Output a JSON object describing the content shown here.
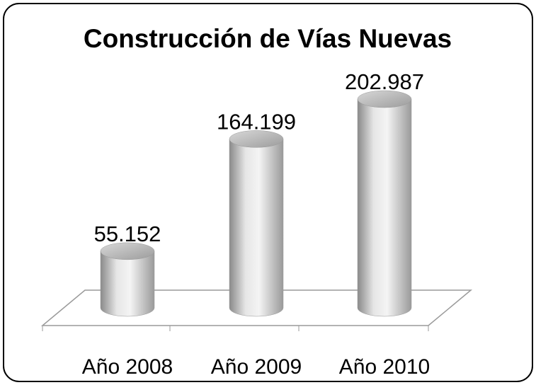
{
  "chart_data": {
    "type": "bar3d",
    "title": "Construcción de Vías Nuevas",
    "categories": [
      "Año 2008",
      "Año 2009",
      "Año 2010"
    ],
    "values": [
      55152,
      164199,
      202987
    ],
    "value_labels": [
      "55.152",
      "164.199",
      "202.987"
    ],
    "color": "#c8c8c8"
  }
}
